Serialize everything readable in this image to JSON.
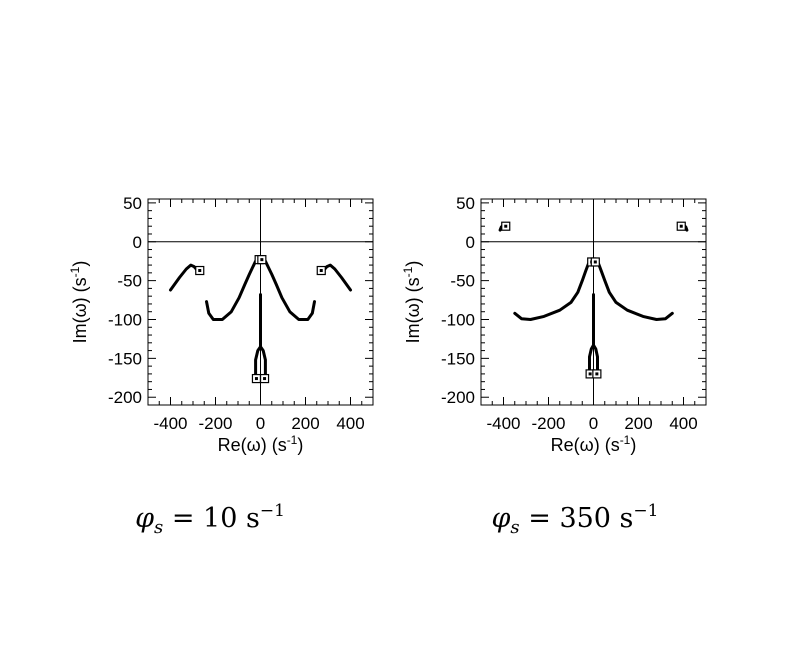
{
  "chart_data": [
    {
      "type": "line",
      "xlabel": "Re(ω) (s",
      "xlabel_sup": "-1",
      "ylabel": "Im(ω) (s",
      "ylabel_sup": "-1",
      "xlim": [
        -500,
        500
      ],
      "ylim": [
        -210,
        55
      ],
      "xticks": [
        -400,
        -200,
        0,
        200,
        400
      ],
      "yticks": [
        50,
        0,
        -50,
        -100,
        -150,
        -200
      ],
      "zero_lines": true,
      "caption": "10",
      "series": [
        {
          "points": [
            [
              -400,
              -62
            ],
            [
              -360,
              -46
            ],
            [
              -330,
              -35
            ],
            [
              -310,
              -30
            ],
            [
              -295,
              -32
            ],
            [
              -280,
              -37
            ]
          ],
          "markers": [
            [
              -270,
              -37
            ]
          ]
        },
        {
          "points": [
            [
              400,
              -62
            ],
            [
              360,
              -46
            ],
            [
              330,
              -35
            ],
            [
              310,
              -30
            ],
            [
              295,
              -32
            ],
            [
              280,
              -37
            ]
          ],
          "markers": [
            [
              270,
              -37
            ]
          ]
        },
        {
          "points": [
            [
              -240,
              -77
            ],
            [
              -230,
              -92
            ],
            [
              -210,
              -100
            ],
            [
              -170,
              -100
            ],
            [
              -130,
              -90
            ],
            [
              -95,
              -72
            ],
            [
              -70,
              -55
            ],
            [
              -50,
              -42
            ],
            [
              -35,
              -33
            ],
            [
              -22,
              -25
            ],
            [
              -10,
              -23
            ],
            [
              0,
              -23
            ]
          ],
          "markers": [
            [
              -6,
              -23
            ]
          ]
        },
        {
          "points": [
            [
              240,
              -77
            ],
            [
              230,
              -92
            ],
            [
              210,
              -100
            ],
            [
              170,
              -100
            ],
            [
              130,
              -90
            ],
            [
              95,
              -72
            ],
            [
              70,
              -55
            ],
            [
              50,
              -42
            ],
            [
              35,
              -33
            ],
            [
              22,
              -25
            ],
            [
              10,
              -23
            ],
            [
              0,
              -23
            ]
          ],
          "markers": [
            [
              6,
              -23
            ]
          ]
        },
        {
          "points": [
            [
              0,
              -68
            ],
            [
              0,
              -135
            ],
            [
              -12,
              -140
            ],
            [
              -22,
              -152
            ],
            [
              -22,
              -172
            ]
          ],
          "markers": [
            [
              -18,
              -176
            ]
          ]
        },
        {
          "points": [
            [
              0,
              -135
            ],
            [
              12,
              -140
            ],
            [
              22,
              -152
            ],
            [
              22,
              -172
            ]
          ],
          "markers": [
            [
              18,
              -176
            ]
          ]
        }
      ]
    },
    {
      "type": "line",
      "xlabel": "Re(ω) (s",
      "xlabel_sup": "-1",
      "ylabel": "Im(ω) (s",
      "ylabel_sup": "-1",
      "xlim": [
        -500,
        500
      ],
      "ylim": [
        -210,
        55
      ],
      "xticks": [
        -400,
        -200,
        0,
        200,
        400
      ],
      "yticks": [
        50,
        0,
        -50,
        -100,
        -150,
        -200
      ],
      "zero_lines": true,
      "caption": "350",
      "series": [
        {
          "points": [
            [
              -415,
              15
            ],
            [
              -410,
              19
            ],
            [
              -400,
              21
            ]
          ],
          "markers": [
            [
              -390,
              20
            ]
          ]
        },
        {
          "points": [
            [
              415,
              15
            ],
            [
              410,
              19
            ],
            [
              400,
              21
            ]
          ],
          "markers": [
            [
              390,
              20
            ]
          ]
        },
        {
          "points": [
            [
              -350,
              -92
            ],
            [
              -320,
              -99
            ],
            [
              -280,
              -100
            ],
            [
              -220,
              -96
            ],
            [
              -150,
              -88
            ],
            [
              -100,
              -78
            ],
            [
              -70,
              -65
            ],
            [
              -50,
              -50
            ],
            [
              -35,
              -38
            ],
            [
              -22,
              -28
            ],
            [
              -12,
              -26
            ],
            [
              0,
              -26
            ]
          ],
          "markers": [
            [
              -8,
              -26
            ]
          ]
        },
        {
          "points": [
            [
              350,
              -92
            ],
            [
              320,
              -99
            ],
            [
              280,
              -100
            ],
            [
              220,
              -96
            ],
            [
              150,
              -88
            ],
            [
              100,
              -78
            ],
            [
              70,
              -65
            ],
            [
              50,
              -50
            ],
            [
              35,
              -38
            ],
            [
              22,
              -28
            ],
            [
              12,
              -26
            ],
            [
              0,
              -26
            ]
          ],
          "markers": [
            [
              8,
              -26
            ]
          ]
        },
        {
          "points": [
            [
              0,
              -68
            ],
            [
              0,
              -133
            ],
            [
              -10,
              -138
            ],
            [
              -18,
              -148
            ],
            [
              -18,
              -165
            ]
          ],
          "markers": [
            [
              -15,
              -170
            ]
          ]
        },
        {
          "points": [
            [
              0,
              -133
            ],
            [
              10,
              -138
            ],
            [
              18,
              -148
            ],
            [
              18,
              -165
            ]
          ],
          "markers": [
            [
              15,
              -170
            ]
          ]
        }
      ]
    }
  ],
  "captions": [
    {
      "symbol": "φ",
      "sub": "s",
      "eq": " = ",
      "value": "10",
      "unit": " s",
      "unit_sup": "−1"
    },
    {
      "symbol": "φ",
      "sub": "s",
      "eq": " = ",
      "value": "350",
      "unit": " s",
      "unit_sup": "−1"
    }
  ]
}
